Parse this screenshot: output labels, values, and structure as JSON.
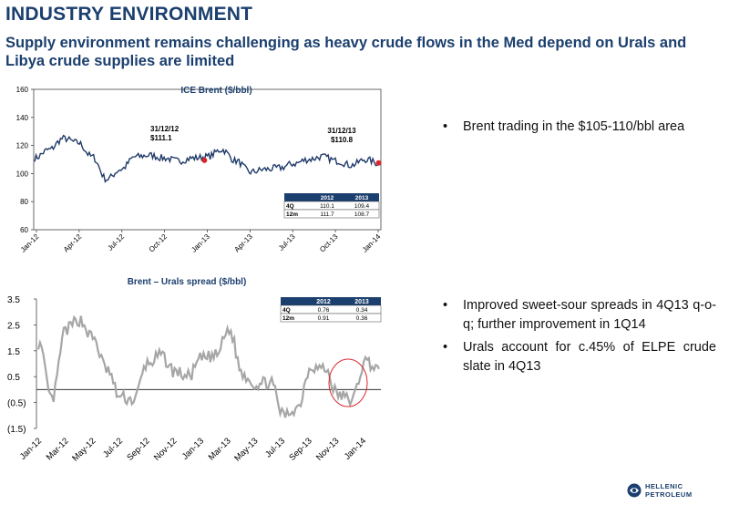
{
  "header": {
    "title": "INDUSTRY ENVIRONMENT",
    "subtitle": "Supply environment remains challenging as heavy crude flows in the Med depend on Urals and Libya crude supplies are limited"
  },
  "bullets_top": [
    "Brent trading in the $105-110/bbl area"
  ],
  "bullets_bottom": [
    "Improved sweet-sour spreads in 4Q13 q-o-q; further improvement in 1Q14",
    "Urals account for c.45% of ELPE crude slate in 4Q13"
  ],
  "logo": {
    "line1": "HELLENIC",
    "line2": "PETROLEUM"
  },
  "colors": {
    "title": "#1b3f6e",
    "brent_line": "#1f3a68",
    "spread_line": "#a6a6a6",
    "marker": "#d9262b",
    "circle": "#d9262b"
  },
  "chart_data": [
    {
      "type": "line",
      "title": "ICE Brent ($/bbl)",
      "ylim": [
        60,
        160
      ],
      "yticks": [
        "160",
        "140",
        "120",
        "100",
        "80",
        "60"
      ],
      "xticks": [
        "Jan-12",
        "Apr-12",
        "Jul-12",
        "Oct-12",
        "Jan-13",
        "Apr-13",
        "Jul-13",
        "Oct-13",
        "Jan-14"
      ],
      "series": [
        {
          "x": [
            "Jan-12",
            "Feb-12",
            "Mar-12",
            "Apr-12",
            "May-12",
            "Jun-12",
            "Jul-12",
            "Aug-12",
            "Sep-12",
            "Oct-12",
            "Nov-12",
            "Dec-12",
            "Jan-13",
            "Feb-13",
            "Mar-13",
            "Apr-13",
            "May-13",
            "Jun-13",
            "Jul-13",
            "Aug-13",
            "Sep-13",
            "Oct-13",
            "Nov-13",
            "Dec-13",
            "Jan-14"
          ],
          "values": [
            111,
            117,
            125,
            122,
            112,
            96,
            103,
            112,
            113,
            111,
            109,
            111,
            112,
            117,
            109,
            101,
            103,
            104,
            107,
            110,
            112,
            109,
            106,
            110,
            107
          ]
        }
      ],
      "annotations": [
        {
          "line1": "31/12/12",
          "line2": "$111.1"
        },
        {
          "line1": "31/12/13",
          "line2": "$110.8"
        }
      ],
      "table": {
        "headers": [
          "",
          "2012",
          "2013"
        ],
        "rows": [
          [
            "4Q",
            "110.1",
            "109.4"
          ],
          [
            "12m",
            "111.7",
            "108.7"
          ]
        ]
      }
    },
    {
      "type": "line",
      "title": "Brent – Urals spread ($/bbl)",
      "ylim": [
        -1.5,
        3.5
      ],
      "yticks": [
        "3.5",
        "2.5",
        "1.5",
        "0.5",
        "(0.5)",
        "(1.5)"
      ],
      "xticks": [
        "Jan-12",
        "Mar-12",
        "May-12",
        "Jul-12",
        "Sep-12",
        "Nov-12",
        "Jan-13",
        "Mar-13",
        "May-13",
        "Jul-13",
        "Sep-13",
        "Nov-13",
        "Jan-14"
      ],
      "series": [
        {
          "x": [
            "Jan-12",
            "Feb-12",
            "Mar-12",
            "Apr-12",
            "May-12",
            "Jun-12",
            "Jul-12",
            "Aug-12",
            "Sep-12",
            "Oct-12",
            "Nov-12",
            "Dec-12",
            "Jan-13",
            "Feb-13",
            "Mar-13",
            "Apr-13",
            "May-13",
            "Jun-13",
            "Jul-13",
            "Aug-13",
            "Sep-13",
            "Oct-13",
            "Nov-13",
            "Dec-13",
            "Jan-14",
            "Feb-14"
          ],
          "values": [
            1.8,
            -0.4,
            2.3,
            2.7,
            2.0,
            0.8,
            -0.3,
            -0.4,
            1.0,
            1.3,
            0.7,
            0.5,
            1.2,
            1.3,
            2.3,
            0.6,
            0.2,
            0.3,
            -1.0,
            -0.7,
            0.9,
            0.8,
            -0.2,
            -0.4,
            1.1,
            0.8
          ]
        }
      ],
      "table": {
        "headers": [
          "",
          "2012",
          "2013"
        ],
        "rows": [
          [
            "4Q",
            "0.76",
            "0.34"
          ],
          [
            "12m",
            "0.91",
            "0.36"
          ]
        ]
      }
    }
  ]
}
